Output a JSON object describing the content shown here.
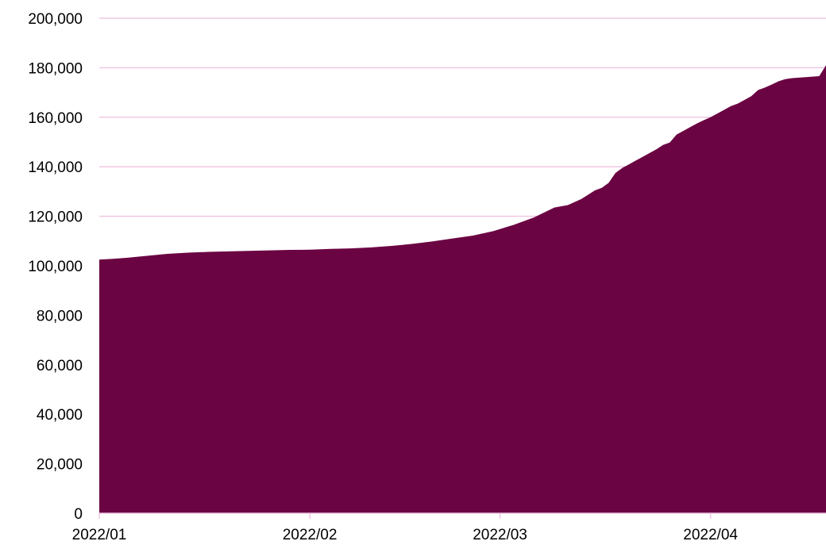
{
  "chart_data": {
    "type": "area",
    "title": "",
    "xlabel": "",
    "ylabel": "",
    "x_tick_labels": [
      "2022/01",
      "2022/02",
      "2022/03",
      "2022/04"
    ],
    "y_tick_labels": [
      "0",
      "20,000",
      "40,000",
      "60,000",
      "80,000",
      "100,000",
      "120,000",
      "140,000",
      "160,000",
      "180,000",
      "200,000"
    ],
    "y_ticks": [
      0,
      20000,
      40000,
      60000,
      80000,
      100000,
      120000,
      140000,
      160000,
      180000,
      200000
    ],
    "ylim": [
      0,
      200000
    ],
    "xlim": [
      "2022-01-01",
      "2022-04-18"
    ],
    "grid": {
      "y": true,
      "x": false
    },
    "legend": "none",
    "colors": {
      "fill": "#6b0442",
      "grid": "#efc7e3",
      "axis": "#efc7e3"
    },
    "series": [
      {
        "x": [
          "2022-01-01",
          "2022-01-03",
          "2022-01-05",
          "2022-01-08",
          "2022-01-11",
          "2022-01-14",
          "2022-01-17",
          "2022-01-20",
          "2022-01-23",
          "2022-01-26",
          "2022-01-29",
          "2022-02-01",
          "2022-02-04",
          "2022-02-07",
          "2022-02-10",
          "2022-02-13",
          "2022-02-16",
          "2022-02-19",
          "2022-02-22",
          "2022-02-25",
          "2022-02-28",
          "2022-03-03",
          "2022-03-06",
          "2022-03-09",
          "2022-03-11",
          "2022-03-13",
          "2022-03-15",
          "2022-03-16",
          "2022-03-17",
          "2022-03-18",
          "2022-03-19",
          "2022-03-20",
          "2022-03-21",
          "2022-03-22",
          "2022-03-23",
          "2022-03-24",
          "2022-03-25",
          "2022-03-26",
          "2022-03-27",
          "2022-03-28",
          "2022-03-29",
          "2022-03-30",
          "2022-03-31",
          "2022-04-01",
          "2022-04-02",
          "2022-04-03",
          "2022-04-04",
          "2022-04-05",
          "2022-04-06",
          "2022-04-07",
          "2022-04-08",
          "2022-04-09",
          "2022-04-10",
          "2022-04-11",
          "2022-04-12",
          "2022-04-13",
          "2022-04-14",
          "2022-04-15",
          "2022-04-16",
          "2022-04-17",
          "2022-04-18"
        ],
        "values": [
          102500,
          102800,
          103200,
          104000,
          104800,
          105300,
          105600,
          105800,
          106000,
          106200,
          106400,
          106500,
          106800,
          107000,
          107400,
          108000,
          108800,
          109800,
          111000,
          112200,
          114000,
          116500,
          119500,
          123500,
          124500,
          127000,
          130500,
          131500,
          133500,
          137500,
          139500,
          141000,
          142500,
          144000,
          145500,
          147000,
          148800,
          149800,
          153000,
          154500,
          156000,
          157500,
          158800,
          160000,
          161500,
          163000,
          164500,
          165500,
          167000,
          168500,
          171000,
          172000,
          173200,
          174500,
          175400,
          175800,
          176000,
          176200,
          176400,
          176600,
          181000
        ]
      }
    ]
  }
}
